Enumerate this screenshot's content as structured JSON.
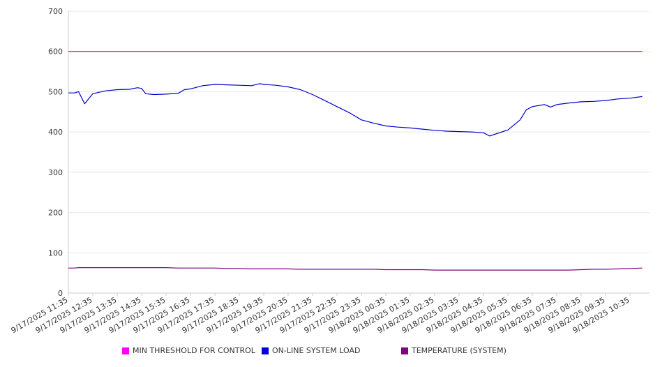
{
  "chart_data": {
    "type": "line",
    "title": "",
    "xlabel": "",
    "ylabel": "",
    "ylim": [
      0,
      700
    ],
    "y_ticks": [
      0,
      100,
      200,
      300,
      400,
      500,
      600,
      700
    ],
    "grid": true,
    "legend_position": "bottom",
    "x_tick_labels": [
      "9/17/2025 11:35",
      "9/17/2025 12:35",
      "9/17/2025 13:35",
      "9/17/2025 14:35",
      "9/17/2025 15:35",
      "9/17/2025 16:35",
      "9/17/2025 17:35",
      "9/17/2025 18:35",
      "9/17/2025 19:35",
      "9/17/2025 20:35",
      "9/17/2025 21:35",
      "9/17/2025 22:35",
      "9/17/2025 23:35",
      "9/18/2025 00:35",
      "9/18/2025 01:35",
      "9/18/2025 02:35",
      "9/18/2025 03:35",
      "9/18/2025 04:35",
      "9/18/2025 05:35",
      "9/18/2025 06:35",
      "9/18/2025 07:35",
      "9/18/2025 08:35",
      "9/18/2025 09:35",
      "9/18/2025 10:35"
    ],
    "x": [
      "9/17/2025 11:35",
      "9/17/2025 11:50",
      "9/17/2025 12:00",
      "9/17/2025 12:15",
      "9/17/2025 12:35",
      "9/17/2025 13:05",
      "9/17/2025 13:35",
      "9/17/2025 14:05",
      "9/17/2025 14:25",
      "9/17/2025 14:35",
      "9/17/2025 14:45",
      "9/17/2025 15:05",
      "9/17/2025 15:35",
      "9/17/2025 16:05",
      "9/17/2025 16:20",
      "9/17/2025 16:35",
      "9/17/2025 17:05",
      "9/17/2025 17:35",
      "9/17/2025 18:05",
      "9/17/2025 18:35",
      "9/17/2025 19:05",
      "9/17/2025 19:25",
      "9/17/2025 19:35",
      "9/17/2025 20:05",
      "9/17/2025 20:35",
      "9/17/2025 21:05",
      "9/17/2025 21:35",
      "9/17/2025 22:05",
      "9/17/2025 22:35",
      "9/17/2025 23:05",
      "9/17/2025 23:35",
      "9/18/2025 00:05",
      "9/18/2025 00:35",
      "9/18/2025 01:05",
      "9/18/2025 01:35",
      "9/18/2025 02:05",
      "9/18/2025 02:35",
      "9/18/2025 03:05",
      "9/18/2025 03:35",
      "9/18/2025 04:05",
      "9/18/2025 04:35",
      "9/18/2025 04:50",
      "9/18/2025 05:05",
      "9/18/2025 05:35",
      "9/18/2025 06:05",
      "9/18/2025 06:20",
      "9/18/2025 06:35",
      "9/18/2025 07:05",
      "9/18/2025 07:20",
      "9/18/2025 07:35",
      "9/18/2025 08:05",
      "9/18/2025 08:35",
      "9/18/2025 09:05",
      "9/18/2025 09:35",
      "9/18/2025 10:05",
      "9/18/2025 10:35",
      "9/18/2025 11:05"
    ],
    "series": [
      {
        "name": "MIN THRESHOLD FOR CONTROL",
        "color": "#cc00cc",
        "values": [
          600,
          600,
          600,
          600,
          600,
          600,
          600,
          600,
          600,
          600,
          600,
          600,
          600,
          600,
          600,
          600,
          600,
          600,
          600,
          600,
          600,
          600,
          600,
          600,
          600,
          600,
          600,
          600,
          600,
          600,
          600,
          600,
          600,
          600,
          600,
          600,
          600,
          600,
          600,
          600,
          600,
          600,
          600,
          600,
          600,
          600,
          600,
          600,
          600,
          600,
          600,
          600,
          600,
          600,
          600,
          600,
          600
        ]
      },
      {
        "name": "ON-LINE SYSTEM LOAD",
        "color": "#0000cc",
        "values": [
          497,
          497,
          500,
          470,
          495,
          502,
          505,
          506,
          510,
          508,
          495,
          493,
          494,
          496,
          505,
          507,
          515,
          518,
          517,
          516,
          515,
          520,
          518,
          516,
          512,
          505,
          493,
          478,
          463,
          448,
          430,
          422,
          415,
          412,
          410,
          407,
          404,
          402,
          401,
          400,
          398,
          390,
          395,
          405,
          430,
          455,
          463,
          468,
          462,
          468,
          472,
          475,
          476,
          478,
          482,
          484,
          488
        ]
      },
      {
        "name": "TEMPERATURE (SYSTEM)",
        "color": "#800080",
        "values": [
          62,
          62,
          63,
          63,
          63,
          63,
          63,
          63,
          63,
          63,
          63,
          63,
          63,
          62,
          62,
          62,
          62,
          62,
          61,
          61,
          60,
          60,
          60,
          60,
          60,
          59,
          59,
          59,
          59,
          59,
          59,
          59,
          58,
          58,
          58,
          58,
          57,
          57,
          57,
          57,
          57,
          57,
          57,
          57,
          57,
          57,
          57,
          57,
          57,
          57,
          57,
          58,
          59,
          59,
          60,
          61,
          62
        ]
      }
    ]
  }
}
